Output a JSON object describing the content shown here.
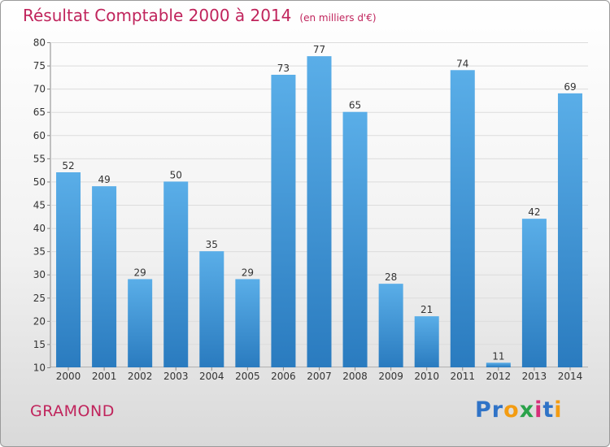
{
  "header": {
    "title": "Résultat Comptable 2000 à 2014",
    "subtitle": "(en milliers d'€)"
  },
  "footer": {
    "commune": "GRAMOND",
    "logo": "Proxiti"
  },
  "colors": {
    "title": "#c0245c",
    "bar_top": "#5aaee8",
    "bar_bottom": "#2a7bbf"
  },
  "chart_data": {
    "type": "bar",
    "title": "Résultat Comptable 2000 à 2014",
    "subtitle": "(en milliers d'€)",
    "categories": [
      "2000",
      "2001",
      "2002",
      "2003",
      "2004",
      "2005",
      "2006",
      "2007",
      "2008",
      "2009",
      "2010",
      "2011",
      "2012",
      "2013",
      "2014"
    ],
    "values": [
      52,
      49,
      29,
      50,
      35,
      29,
      73,
      77,
      65,
      28,
      21,
      74,
      11,
      42,
      69
    ],
    "ylim": [
      10,
      80
    ],
    "yticks": [
      10,
      15,
      20,
      25,
      30,
      35,
      40,
      45,
      50,
      55,
      60,
      65,
      70,
      75,
      80
    ],
    "grid": true,
    "data_labels": true
  }
}
